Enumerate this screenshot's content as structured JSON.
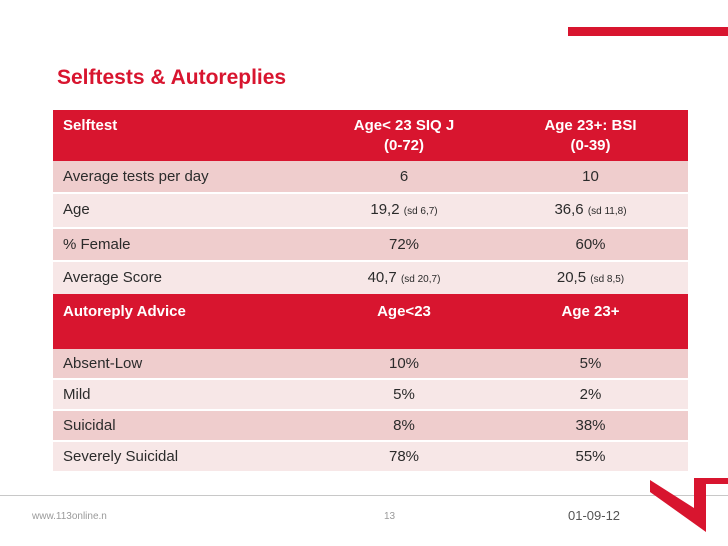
{
  "title": "Selftests & Autoreplies",
  "selftest_table": {
    "headers": [
      "Selftest",
      "Age< 23 SIQ J",
      "(0-72)",
      "Age 23+: BSI",
      "(0-39)"
    ],
    "rows": [
      {
        "label": "Average tests per day",
        "a": "6",
        "a_sd": "",
        "b": "10",
        "b_sd": ""
      },
      {
        "label": "Age",
        "a": "19,2",
        "a_sd": "(sd 6,7)",
        "b": "36,6",
        "b_sd": "(sd 11,8)"
      },
      {
        "label": "% Female",
        "a": "72%",
        "a_sd": "",
        "b": "60%",
        "b_sd": ""
      },
      {
        "label": "Average Score",
        "a": "40,7",
        "a_sd": "(sd 20,7)",
        "b": "20,5",
        "b_sd": "(sd 8,5)"
      }
    ]
  },
  "autoreply_table": {
    "headers": [
      "Autoreply Advice",
      "Age<23",
      "Age 23+"
    ],
    "rows": [
      {
        "label": "Absent-Low",
        "a": "10%",
        "b": "5%"
      },
      {
        "label": "Mild",
        "a": "5%",
        "b": "2%"
      },
      {
        "label": "Suicidal",
        "a": "8%",
        "b": "38%"
      },
      {
        "label": "Severely Suicidal",
        "a": "78%",
        "b": "55%"
      }
    ]
  },
  "footer": {
    "website": "www.113online.n",
    "page": "13",
    "date": "01-09-12"
  },
  "colors": {
    "accent": "#d8152f",
    "row_dark": "#efcdcd",
    "row_light": "#f7e7e7"
  }
}
